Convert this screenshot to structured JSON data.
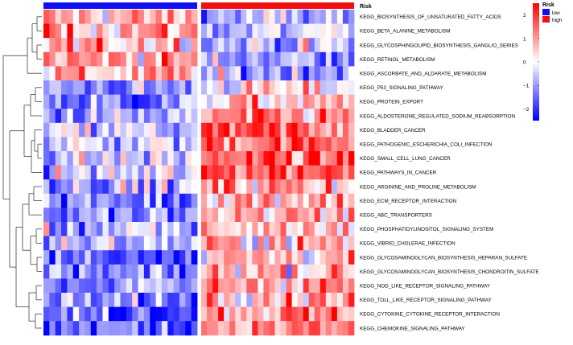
{
  "chart_data": {
    "type": "heatmap",
    "annotation_title": "Risk",
    "groups": [
      {
        "name": "low",
        "color": "#1010f0",
        "n_samples": 26
      },
      {
        "name": "high",
        "color": "#f01010",
        "n_samples": 27
      }
    ],
    "rows": [
      "KEGG_BIOSYNTHESIS_OF_UNSATURATED_FATTY_ACIDS",
      "KEGG_BETA_ALANINE_METABOLISM",
      "KEGG_GLYCOSPHINGOLIPID_BIOSYNTHESIS_GANGLIO_SERIES",
      "KEGG_RETINOL_METABOLISM",
      "KEGG_ASCORBATE_AND_ALDARATE_METABOLISM",
      "KEGG_P53_SIGNALING_PATHWAY",
      "KEGG_PROTEIN_EXPORT",
      "KEGG_ALDOSTERONE_REGULATED_SODIUM_REABSORPTION",
      "KEGG_BLADDER_CANCER",
      "KEGG_PATHOGENIC_ESCHERICHIA_COLI_INFECTION",
      "KEGG_SMALL_CELL_LUNG_CANCER",
      "KEGG_PATHWAYS_IN_CANCER",
      "KEGG_ARGININE_AND_PROLINE_METABOLISM",
      "KEGG_ECM_RECEPTOR_INTERACTION",
      "KEGG_ABC_TRANSPORTERS",
      "KEGG_PHOSPHATIDYLINOSITOL_SIGNALING_SYSTEM",
      "KEGG_VIBRIO_CHOLERAE_INFECTION",
      "KEGG_GLYCOSAMINOGLYCAN_BIOSYNTHESIS_HEPARAN_SULFATE",
      "KEGG_GLYCOSAMINOGLYCAN_BIOSYNTHESIS_CHONDROITIN_SULFATE",
      "KEGG_NOD_LIKE_RECEPTOR_SIGNALING_PATHWAY",
      "KEGG_TOLL_LIKE_RECEPTOR_SIGNALING_PATHWAY",
      "KEGG_CYTOKINE_CYTOKINE_RECEPTOR_INTERACTION",
      "KEGG_CHEMOKINE_SIGNALING_PATHWAY"
    ],
    "row_bias_low": [
      0.4,
      0.6,
      0.5,
      0.6,
      0.4,
      -0.7,
      -0.8,
      -0.6,
      -0.4,
      -0.3,
      -0.3,
      -0.3,
      -0.4,
      -0.8,
      -0.8,
      -0.5,
      -0.4,
      -0.9,
      -0.9,
      -0.7,
      -0.8,
      -0.9,
      -0.9
    ],
    "row_bias_high": [
      -0.5,
      -0.4,
      -0.4,
      -0.5,
      -0.5,
      0.1,
      0.3,
      0.6,
      0.9,
      1.0,
      1.0,
      1.1,
      0.6,
      0.6,
      0.5,
      0.4,
      0.4,
      0.4,
      0.5,
      0.7,
      0.7,
      0.7,
      0.7
    ],
    "colorbar": {
      "min": -2.5,
      "max": 2.5,
      "ticks": [
        "2",
        "1",
        "0",
        "−1",
        "−2"
      ],
      "tick_values": [
        2,
        1,
        0,
        -1,
        -2
      ],
      "colors": [
        "#0000ff",
        "#ffffff",
        "#ff0000"
      ]
    },
    "legend_placement": "right",
    "dendrogram": "rows"
  }
}
